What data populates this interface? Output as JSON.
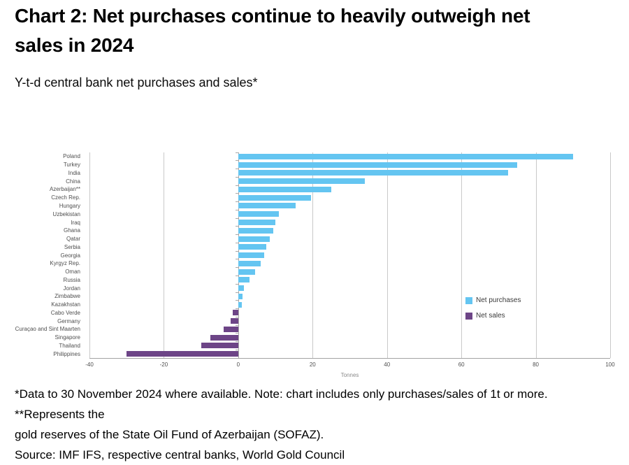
{
  "title": {
    "lines": [
      "Chart 2: Net purchases continue to heavily outweigh net",
      "sales in 2024"
    ],
    "full": "Chart 2: Net purchases continue to heavily outweigh net sales in 2024"
  },
  "subtitle": "Y-t-d central bank net purchases and sales*",
  "footnotes": {
    "note_lines": [
      "*Data to 30 November 2024 where available. Note: chart includes only purchases/sales of 1t or more. **Represents the",
      "gold reserves of the State Oil Fund of Azerbaijan (SOFAZ)."
    ],
    "source": "Source: IMF IFS, respective central banks, World Gold Council"
  },
  "colors": {
    "net_purchases": "#64C5F1",
    "net_sales": "#6D4587",
    "gridline": "#c9c9c9",
    "axis_line": "#a8a8a8",
    "axis_text": "#4f4f4f"
  },
  "chart_data": {
    "type": "bar",
    "orientation": "horizontal",
    "title": "Y-t-d central bank net purchases and sales*",
    "xlabel": "Tonnes",
    "ylabel": "",
    "xlim": [
      -40,
      100
    ],
    "xticks": [
      -40,
      -20,
      0,
      20,
      40,
      60,
      80,
      100
    ],
    "grid": true,
    "legend_position": "right-middle",
    "legend": [
      {
        "label": "Net purchases",
        "color": "#64C5F1"
      },
      {
        "label": "Net sales",
        "color": "#6D4587"
      }
    ],
    "categories": [
      "Poland",
      "Turkey",
      "India",
      "China",
      "Azerbaijan**",
      "Czech Rep.",
      "Hungary",
      "Uzbekistan",
      "Iraq",
      "Ghana",
      "Qatar",
      "Serbia",
      "Georgia",
      "Kyrgyz Rep.",
      "Oman",
      "Russia",
      "Jordan",
      "Zimbabwe",
      "Kazakhstan",
      "Cabo Verde",
      "Germany",
      "Curaçao and Sint Maarten",
      "Singapore",
      "Thailand",
      "Philippines"
    ],
    "values": [
      90,
      75,
      72.5,
      34,
      25,
      19.5,
      15.5,
      11,
      10,
      9.5,
      8.5,
      7.5,
      7,
      6,
      4.5,
      3,
      1.5,
      1.2,
      1,
      -1.5,
      -2,
      -4,
      -7.5,
      -10,
      -30
    ],
    "units": "tonnes"
  }
}
